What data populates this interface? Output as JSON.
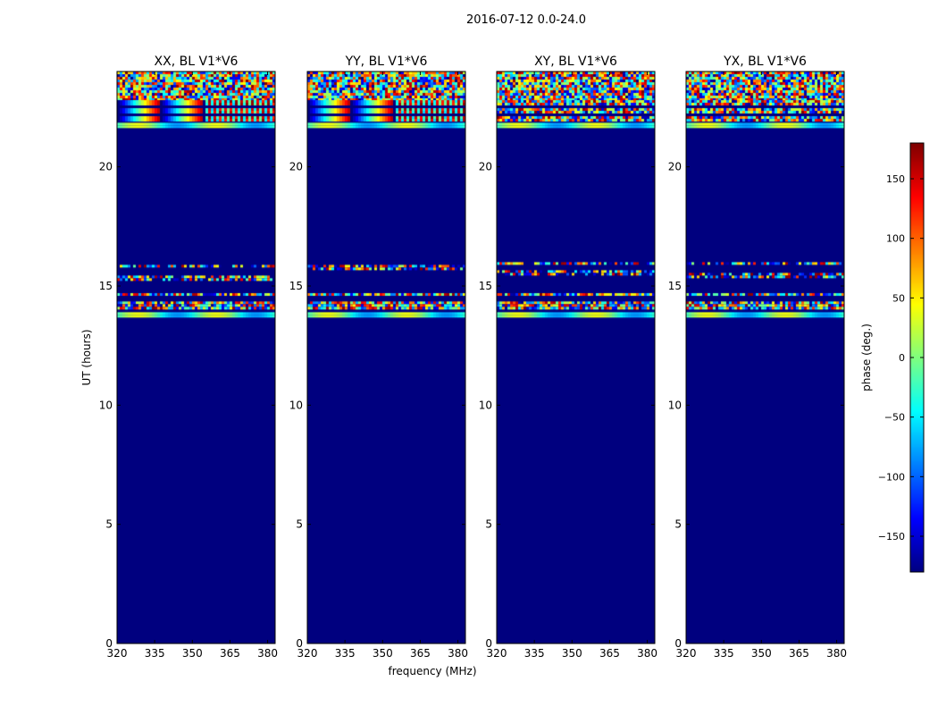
{
  "chart_data": {
    "type": "heatmap",
    "title": "2016-07-12 0.0-24.0",
    "xlabel": "frequency (MHz)",
    "ylabel": "UT (hours)",
    "xlim": [
      320,
      383
    ],
    "ylim": [
      0,
      24
    ],
    "xticks": [
      320,
      335,
      350,
      365,
      380
    ],
    "yticks": [
      0,
      5,
      10,
      15,
      20
    ],
    "panels": [
      {
        "title": "XX, BL V1*V6",
        "fringe": true
      },
      {
        "title": "YY, BL V1*V6",
        "fringe": true
      },
      {
        "title": "XY, BL V1*V6",
        "fringe": false
      },
      {
        "title": "YX, BL V1*V6",
        "fringe": false
      }
    ],
    "background_phase": -180,
    "bands": [
      {
        "ut": [
          22.8,
          24.0
        ],
        "pattern": "noise"
      },
      {
        "ut": [
          21.9,
          22.8
        ],
        "pattern": "fringe"
      },
      {
        "ut": [
          21.72,
          21.85
        ],
        "pattern": "smooth"
      },
      {
        "ut": [
          15.3,
          16.0
        ],
        "pattern": "sparse-noise"
      },
      {
        "ut": [
          14.6,
          14.7
        ],
        "pattern": "noise"
      },
      {
        "ut": [
          14.05,
          14.35
        ],
        "pattern": "noise"
      },
      {
        "ut": [
          13.72,
          13.9
        ],
        "pattern": "smooth"
      }
    ],
    "colorbar": {
      "label": "phase (deg.)",
      "range": [
        -180,
        180
      ],
      "ticks": [
        -150,
        -100,
        -50,
        0,
        50,
        100,
        150
      ],
      "tick_labels": [
        "−150",
        "−100",
        "−50",
        "0",
        "50",
        "100",
        "150"
      ],
      "colormap": "jet"
    }
  }
}
